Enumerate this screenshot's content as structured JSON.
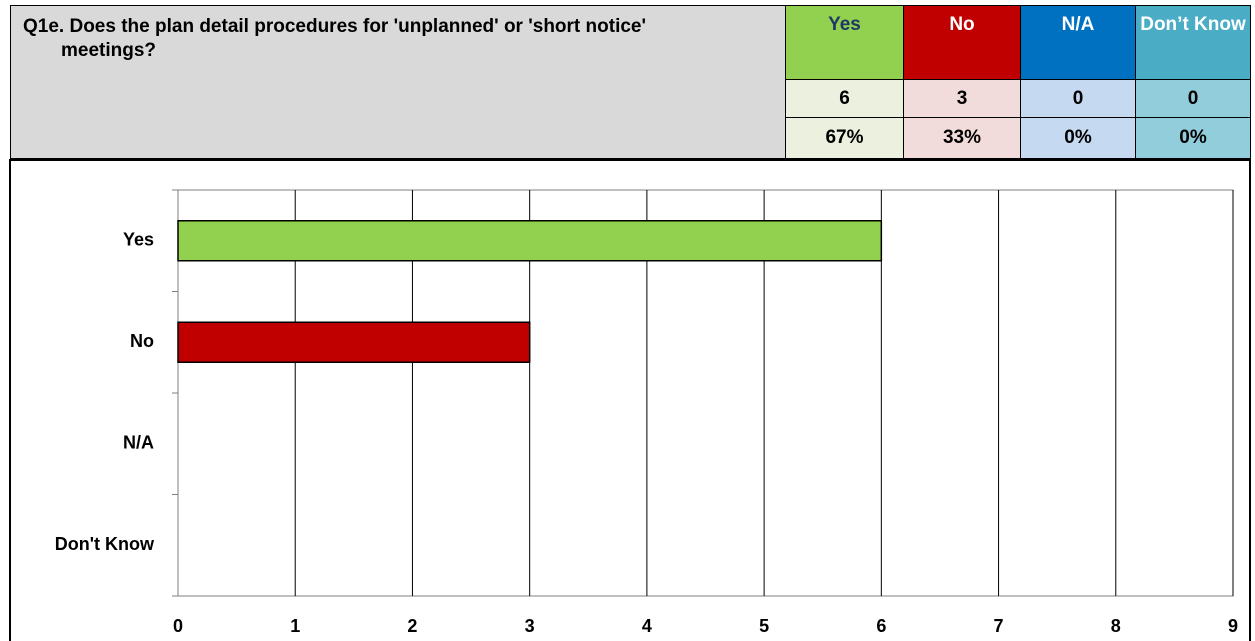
{
  "table": {
    "question": "Q1e.  Does the plan detail procedures for 'unplanned' or 'short notice' meetings?",
    "columns": [
      "Yes",
      "No",
      "N/A",
      "Don’t Know"
    ],
    "counts": [
      6,
      3,
      0,
      0
    ],
    "percentages": [
      "67%",
      "33%",
      "0%",
      "0%"
    ]
  },
  "chart_data": {
    "type": "hbar",
    "categories": [
      "Yes",
      "No",
      "N/A",
      "Don't Know"
    ],
    "values": [
      6,
      3,
      0,
      0
    ],
    "colors": [
      "#92d050",
      "#c00000",
      "#0070c0",
      "#4bacc6"
    ],
    "xlim": [
      0,
      9
    ],
    "xticks": [
      0,
      1,
      2,
      3,
      4,
      5,
      6,
      7,
      8,
      9
    ],
    "grid": true
  }
}
